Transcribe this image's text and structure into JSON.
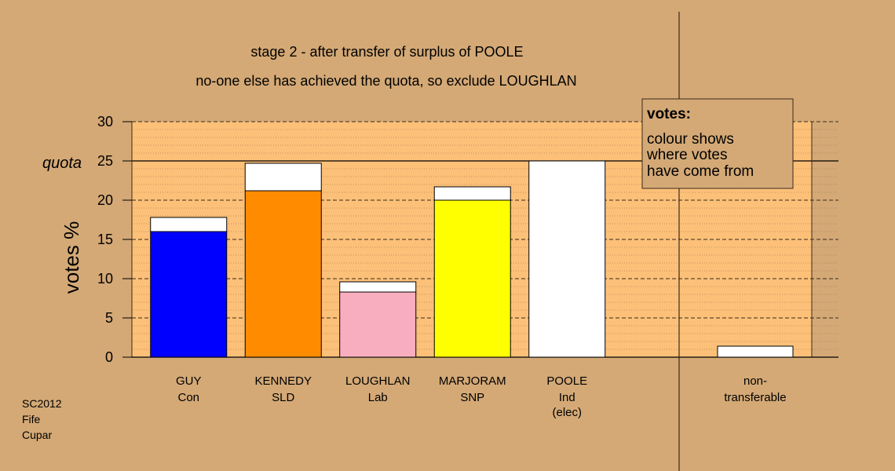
{
  "chart_data": {
    "type": "bar",
    "title": "stage 2 - after transfer of surplus of POOLE",
    "subtitle": "no-one else has achieved the quota, so exclude LOUGHLAN",
    "ylabel": "votes %",
    "ylim": [
      0,
      30
    ],
    "yticks": [
      "0",
      "5",
      "10",
      "15",
      "20",
      "25",
      "30"
    ],
    "quota": 25,
    "quota_label": "quota",
    "grid": true,
    "categories": [
      {
        "name": "GUY",
        "party": "Con",
        "note": ""
      },
      {
        "name": "KENNEDY",
        "party": "SLD",
        "note": ""
      },
      {
        "name": "LOUGHLAN",
        "party": "Lab",
        "note": ""
      },
      {
        "name": "MARJORAM",
        "party": "SNP",
        "note": ""
      },
      {
        "name": "POOLE",
        "party": "Ind",
        "note": "(elec)"
      }
    ],
    "series": [
      {
        "values": [
          16.0,
          21.2,
          8.3,
          20.0,
          0
        ],
        "colors": [
          "#0000ff",
          "#ff8c00",
          "#f9aec0",
          "#ffff00",
          "#ffffff"
        ]
      },
      {
        "values": [
          1.8,
          3.5,
          1.3,
          1.7,
          25.0
        ],
        "colors": [
          "#ffffff",
          "#ffffff",
          "#ffffff",
          "#ffffff",
          "#ffffff"
        ]
      }
    ],
    "nontransferable": {
      "label_line1": "non-",
      "label_line2": "transferable",
      "value": 1.4,
      "color": "#ffffff"
    },
    "legend": {
      "title": "votes:",
      "lines": [
        "colour shows",
        "where votes",
        "have come from"
      ],
      "placement": "top-right"
    },
    "colors": {
      "background": "#d4a976",
      "plot_background": "#fcc078"
    }
  },
  "source": [
    "SC2012",
    "Fife",
    "Cupar"
  ]
}
